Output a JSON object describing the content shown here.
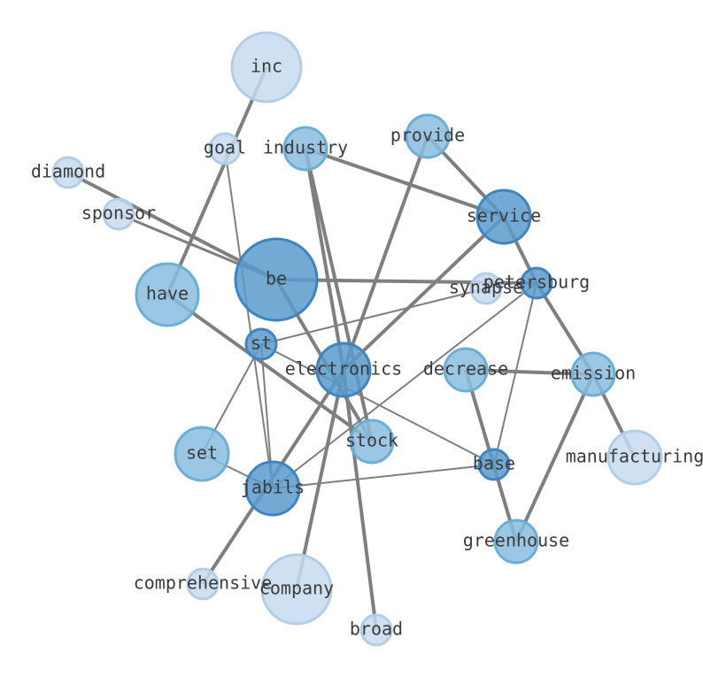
{
  "nodes": [
    "inc",
    "goal",
    "industry",
    "provide",
    "diamond",
    "sponsor",
    "service",
    "have",
    "be",
    "synapse",
    "petersburg",
    "st",
    "electronics",
    "decrease",
    "emission",
    "stock",
    "set",
    "base",
    "manufacturing",
    "jabils",
    "greenhouse",
    "comprehensive",
    "company",
    "broad"
  ]
}
